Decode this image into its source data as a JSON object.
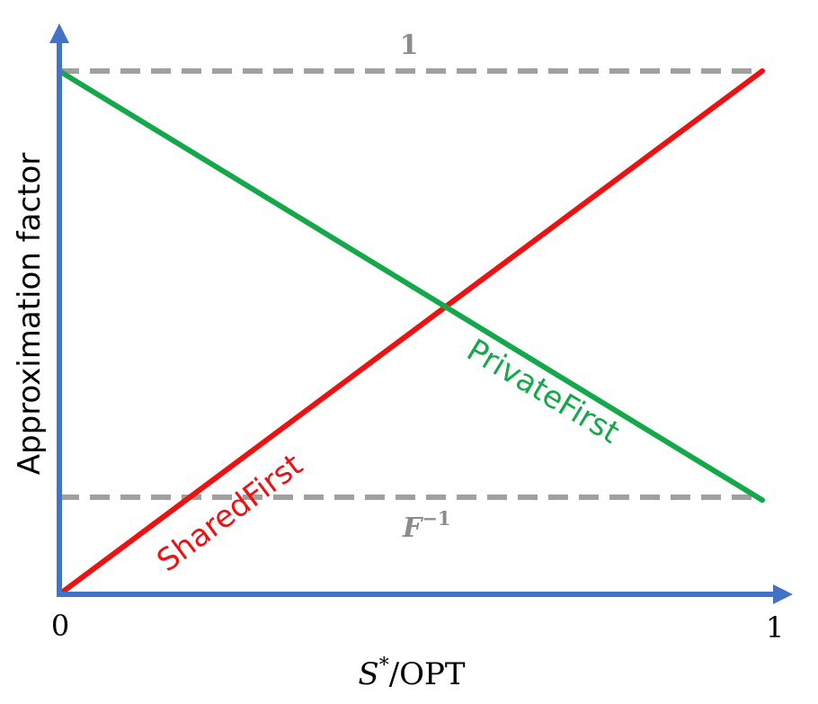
{
  "diagram": {
    "x_axis": {
      "label_italic": "S",
      "label_sup": "*",
      "label_rest": "/OPT",
      "tick_min": "0",
      "tick_max": "1"
    },
    "y_axis": {
      "label": "Approximation factor"
    },
    "reference_lines": {
      "upper_label": "1",
      "lower_label_base": "F",
      "lower_label_sup": "−1"
    },
    "series": [
      {
        "name": "SharedFirst",
        "color": "#ee1111",
        "start": 0.0,
        "end": 1.0
      },
      {
        "name": "PrivateFirst",
        "color": "#14a84a",
        "start": 1.0,
        "end": 0.18
      }
    ],
    "colors": {
      "axis": "#4472c4",
      "reference": "#a0a0a0"
    }
  }
}
